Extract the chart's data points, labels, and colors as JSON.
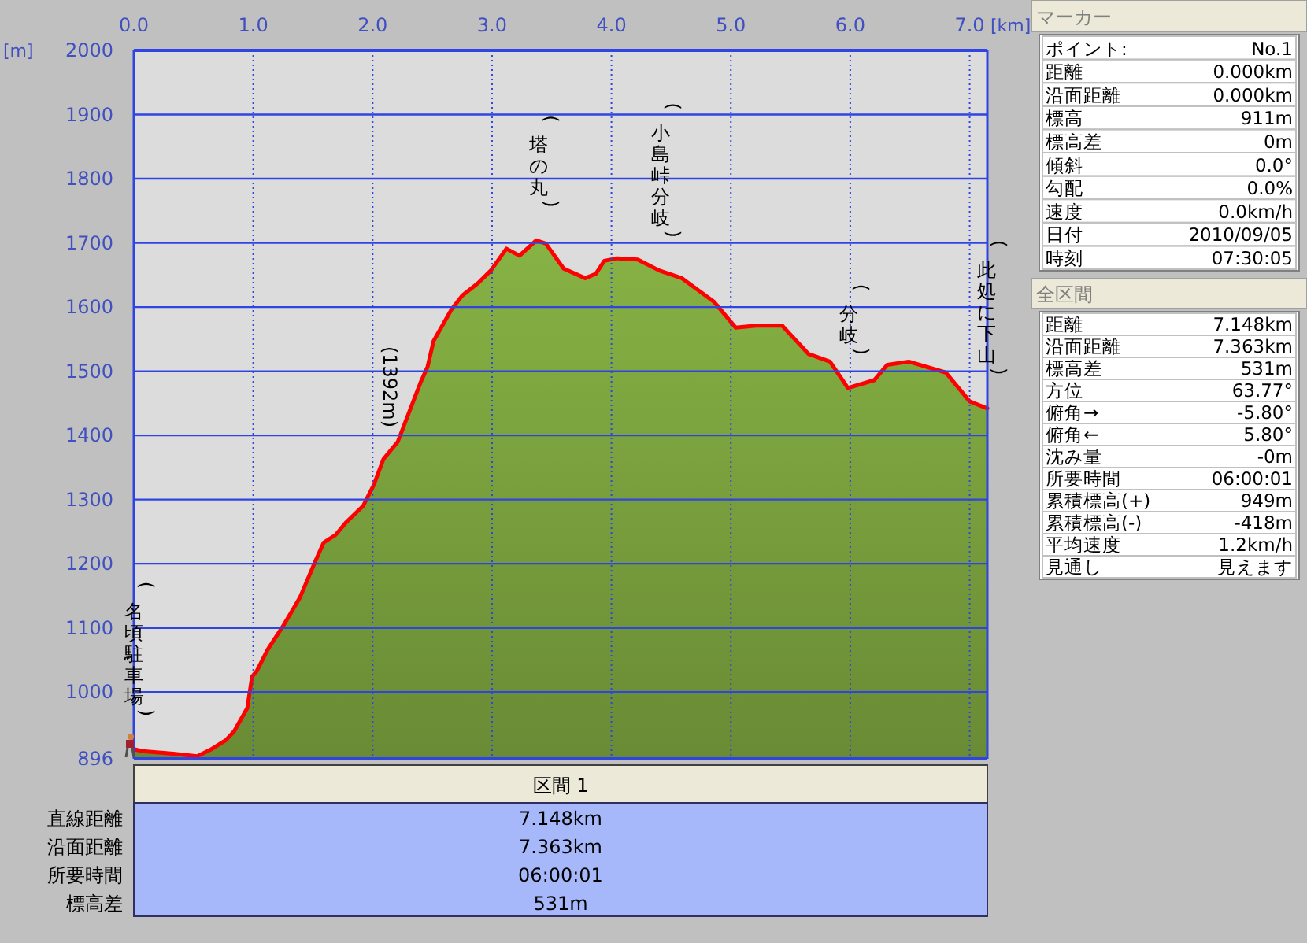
{
  "chart_data": [
    {
      "type": "area",
      "xlabel": "[km]",
      "ylabel": "[m]",
      "xlim": [
        0,
        7.148
      ],
      "ylim": [
        896,
        2000
      ],
      "xticks": [
        {
          "value": 0,
          "label": "0.0"
        },
        {
          "value": 1,
          "label": "1.0"
        },
        {
          "value": 2,
          "label": "2.0"
        },
        {
          "value": 3,
          "label": "3.0"
        },
        {
          "value": 4,
          "label": "4.0"
        },
        {
          "value": 5,
          "label": "5.0"
        },
        {
          "value": 6,
          "label": "6.0"
        },
        {
          "value": 7,
          "label": "7.0"
        }
      ],
      "yticks": [
        896,
        1000,
        1100,
        1200,
        1300,
        1400,
        1500,
        1600,
        1700,
        1800,
        1900,
        2000
      ],
      "grid": true,
      "series": [
        {
          "type": "area",
          "color": "#7ea63f",
          "x": [
            0,
            0.07,
            0.33,
            0.53,
            0.64,
            0.77,
            0.84,
            0.95,
            0.99,
            1.03,
            1.12,
            1.26,
            1.39,
            1.52,
            1.59,
            1.69,
            1.78,
            1.92,
            2.01,
            2.09,
            2.21,
            2.4,
            2.46,
            2.51,
            2.66,
            2.75,
            2.88,
            2.99,
            3.12,
            3.23,
            3.37,
            3.45,
            3.6,
            3.78,
            3.87,
            3.94,
            4.05,
            4.22,
            4.4,
            4.59,
            4.86,
            4.95,
            5.04,
            5.21,
            5.43,
            5.65,
            5.83,
            5.98,
            6.2,
            6.31,
            6.49,
            6.8,
            7.0,
            7.148
          ],
          "values": [
            911,
            908,
            904,
            900,
            910,
            925,
            939,
            975,
            1024,
            1033,
            1066,
            1106,
            1147,
            1204,
            1233,
            1245,
            1265,
            1290,
            1323,
            1363,
            1390,
            1482,
            1507,
            1547,
            1596,
            1618,
            1637,
            1657,
            1691,
            1680,
            1704,
            1699,
            1660,
            1645,
            1652,
            1672,
            1676,
            1674,
            1657,
            1645,
            1608,
            1588,
            1568,
            1571,
            1571,
            1527,
            1515,
            1474,
            1486,
            1510,
            1515,
            1498,
            1453,
            1442
          ]
        }
      ],
      "annotations": [
        {
          "text": "(名頃駐車場)",
          "x": 0,
          "y": 911
        },
        {
          "text": "(1392m)",
          "x": 2.14,
          "y": 1378
        },
        {
          "text": "(塔の丸)",
          "x": 3.39,
          "y": 1704
        },
        {
          "text": "(小島峠分岐)",
          "x": 4.41,
          "y": 1657
        },
        {
          "text": "(分岐)",
          "x": 5.99,
          "y": 1474
        },
        {
          "text": "(此処に下山)",
          "x": 7.14,
          "y": 1443
        }
      ]
    },
    {
      "type": "other",
      "title": "マーカー",
      "annotations": [
        "ポイント:",
        "No.1",
        "距離",
        "0.000km",
        "沿面距離",
        "0.000km",
        "標高",
        "911m",
        "標高差",
        "0m",
        "傾斜",
        "0.0°",
        "勾配",
        "0.0%",
        "速度",
        "0.0km/h",
        "日付",
        "2010/09/05",
        "時刻",
        "07:30:05"
      ]
    },
    {
      "type": "other",
      "title": "全区間",
      "annotations": [
        "距離",
        "7.148km",
        "沿面距離",
        "7.363km",
        "標高差",
        "531m",
        "方位",
        "63.77°",
        "俯角→",
        "-5.80°",
        "俯角←",
        "5.80°",
        "沈み量",
        "-0m",
        "所要時間",
        "06:00:01",
        "累積標高(+)",
        "949m",
        "累積標高(-)",
        "-418m",
        "平均速度",
        "1.2km/h",
        "見通し",
        "見えます"
      ]
    },
    {
      "type": "other",
      "title": "区間 1",
      "annotations": [
        "直線距離",
        "7.148km",
        "沿面距離",
        "7.363km",
        "所要時間",
        "06:00:01",
        "標高差",
        "531m"
      ]
    }
  ]
}
